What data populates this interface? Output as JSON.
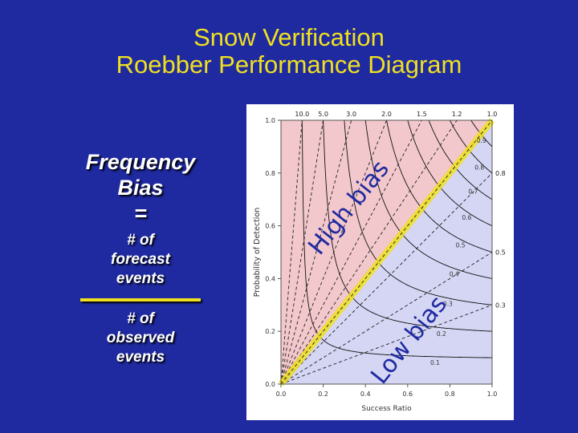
{
  "title": {
    "line1": "Snow Verification",
    "line2": "Roebber Performance Diagram"
  },
  "definition": {
    "term_line1": "Frequency",
    "term_line2": "Bias",
    "equals": "=",
    "numerator_line1": "# of",
    "numerator_line2": "forecast",
    "numerator_line3": "events",
    "denominator_line1": "# of",
    "denominator_line2": "observed",
    "denominator_line3": "events"
  },
  "chart_data": {
    "type": "performance-diagram",
    "xlabel": "Success Ratio",
    "ylabel": "Probability of Detection",
    "xlim": [
      0.0,
      1.0
    ],
    "ylim": [
      0.0,
      1.0
    ],
    "x_ticks": [
      "0.0",
      "0.2",
      "0.4",
      "0.6",
      "0.8",
      "1.0"
    ],
    "y_ticks": [
      "0.0",
      "0.2",
      "0.4",
      "0.6",
      "0.8",
      "1.0"
    ],
    "bias_lines": [
      10.0,
      5.0,
      3.0,
      2.0,
      1.5,
      1.2,
      1.0,
      0.8,
      0.5,
      0.3
    ],
    "bias_labels": [
      "10.0",
      "5.0",
      "3.0",
      "2.0",
      "1.5",
      "1.2",
      "1.0",
      "0.8",
      "0.5",
      "0.3"
    ],
    "csi_curves": [
      0.1,
      0.2,
      0.3,
      0.4,
      0.5,
      0.6,
      0.7,
      0.8,
      0.9
    ],
    "csi_labels": [
      "0.1",
      "0.2",
      "0.3",
      "0.4",
      "0.5",
      "0.6",
      "0.7",
      "0.8",
      "0.9"
    ],
    "high_bias_label": "High bias",
    "low_bias_label": "Low bias",
    "colors": {
      "high_bias_fill": "#f2c8cc",
      "low_bias_fill": "#d4d6f4",
      "unbiased_line": "#f0e020",
      "annotation_text": "#1f2aa0",
      "background": "#1f2aa0",
      "title": "#f0e020"
    }
  }
}
